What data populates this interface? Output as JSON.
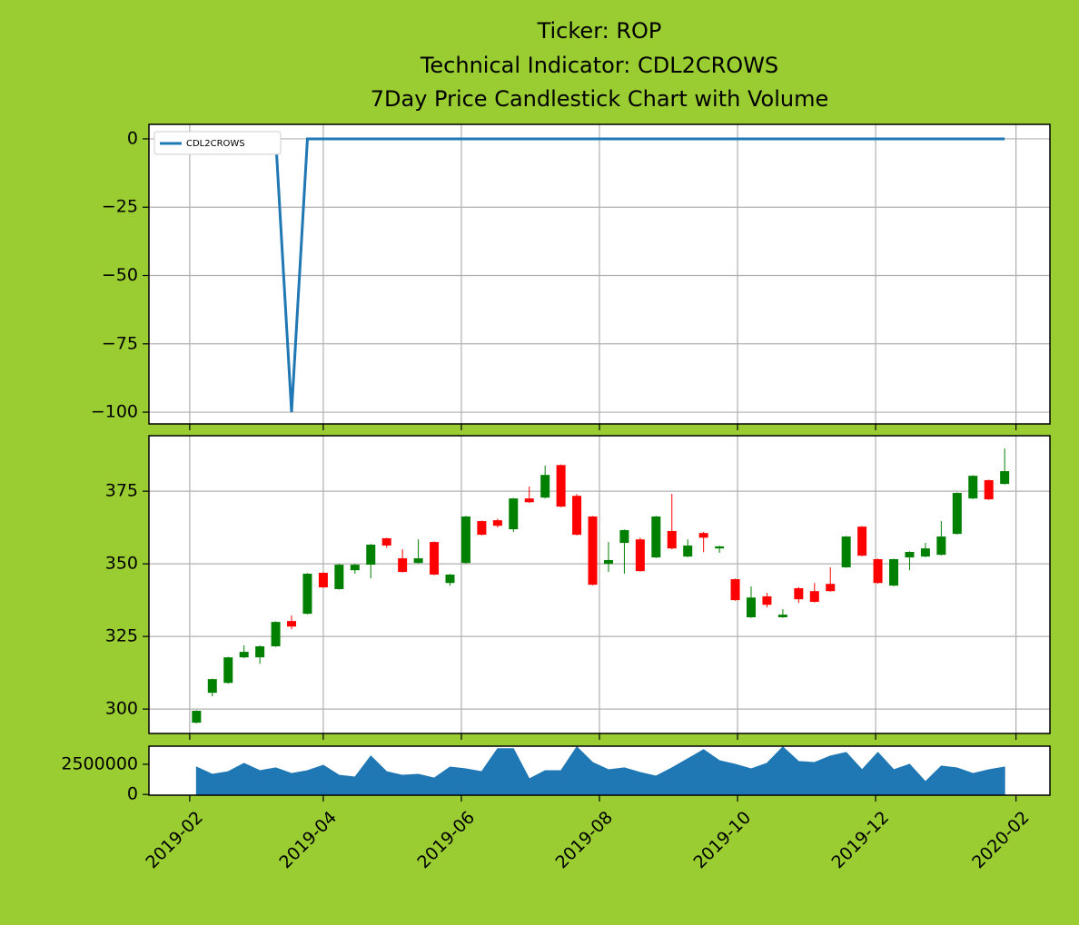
{
  "chart_data": [
    {
      "type": "line",
      "title": [
        "Ticker: ROP",
        "Technical Indicator: CDL2CROWS",
        "7Day Price Candlestick Chart with Volume"
      ],
      "x": [
        "2019-02-04",
        "2019-02-11",
        "2019-02-18",
        "2019-02-25",
        "2019-03-04",
        "2019-03-11",
        "2019-03-18",
        "2019-03-25",
        "2019-04-01",
        "2019-04-08",
        "2019-04-15",
        "2019-04-22",
        "2019-04-29",
        "2019-05-06",
        "2019-05-13",
        "2019-05-20",
        "2019-05-27",
        "2019-06-03",
        "2019-06-10",
        "2019-06-17",
        "2019-06-24",
        "2019-07-01",
        "2019-07-08",
        "2019-07-15",
        "2019-07-22",
        "2019-07-29",
        "2019-08-05",
        "2019-08-12",
        "2019-08-19",
        "2019-08-26",
        "2019-09-02",
        "2019-09-09",
        "2019-09-16",
        "2019-09-23",
        "2019-09-30",
        "2019-10-07",
        "2019-10-14",
        "2019-10-21",
        "2019-10-28",
        "2019-11-04",
        "2019-11-11",
        "2019-11-18",
        "2019-11-25",
        "2019-12-02",
        "2019-12-09",
        "2019-12-16",
        "2019-12-23",
        "2019-12-30",
        "2020-01-06",
        "2020-01-13",
        "2020-01-20",
        "2020-01-27"
      ],
      "series": [
        {
          "name": "CDL2CROWS",
          "color": "#1f77b4",
          "values": [
            0,
            0,
            0,
            0,
            0,
            0,
            -100,
            0,
            0,
            0,
            0,
            0,
            0,
            0,
            0,
            0,
            0,
            0,
            0,
            0,
            0,
            0,
            0,
            0,
            0,
            0,
            0,
            0,
            0,
            0,
            0,
            0,
            0,
            0,
            0,
            0,
            0,
            0,
            0,
            0,
            0,
            0,
            0,
            0,
            0,
            0,
            0,
            0,
            0,
            0,
            0,
            0
          ]
        }
      ],
      "xlim": [
        "2019-01-14",
        "2020-02-16"
      ],
      "ylim": [
        -104.3,
        5.3
      ],
      "yticks": [
        {
          "value": -100,
          "label": "−100"
        },
        {
          "value": -75,
          "label": "−75"
        },
        {
          "value": -50,
          "label": "−50"
        },
        {
          "value": -25,
          "label": "−25"
        },
        0
      ],
      "grid": true,
      "legend": "upper left"
    },
    {
      "type": "candlestick",
      "x": [
        "2019-02-04",
        "2019-02-11",
        "2019-02-18",
        "2019-02-25",
        "2019-03-04",
        "2019-03-11",
        "2019-03-18",
        "2019-03-25",
        "2019-04-01",
        "2019-04-08",
        "2019-04-15",
        "2019-04-22",
        "2019-04-29",
        "2019-05-06",
        "2019-05-13",
        "2019-05-20",
        "2019-05-27",
        "2019-06-03",
        "2019-06-10",
        "2019-06-17",
        "2019-06-24",
        "2019-07-01",
        "2019-07-08",
        "2019-07-15",
        "2019-07-22",
        "2019-07-29",
        "2019-08-05",
        "2019-08-12",
        "2019-08-19",
        "2019-08-26",
        "2019-09-02",
        "2019-09-09",
        "2019-09-16",
        "2019-09-23",
        "2019-09-30",
        "2019-10-07",
        "2019-10-14",
        "2019-10-21",
        "2019-10-28",
        "2019-11-04",
        "2019-11-11",
        "2019-11-18",
        "2019-11-25",
        "2019-12-02",
        "2019-12-09",
        "2019-12-16",
        "2019-12-23",
        "2019-12-30",
        "2020-01-06",
        "2020-01-13",
        "2020-01-20",
        "2020-01-27"
      ],
      "open": [
        295.3,
        305.6,
        309,
        317.8,
        317.8,
        321.6,
        330.3,
        332.8,
        346.9,
        341.3,
        347.8,
        349.7,
        358.8,
        351.9,
        350.3,
        357.5,
        343.4,
        350.3,
        364.7,
        365,
        361.9,
        372.5,
        372.8,
        384,
        373.4,
        366.3,
        350,
        357.2,
        358.4,
        352.2,
        361.3,
        352.5,
        360.6,
        355.3,
        344.7,
        331.6,
        338.8,
        331.6,
        341.6,
        340.6,
        343.1,
        348.8,
        362.8,
        351.6,
        342.5,
        352.2,
        352.5,
        353.1,
        360.3,
        372.5,
        378.8,
        377.5
      ],
      "high": [
        299.6,
        310.5,
        318,
        321.9,
        321.9,
        330.2,
        332.2,
        346.8,
        347.1,
        350,
        350,
        356.8,
        359,
        355,
        358.4,
        357.7,
        346.5,
        366.5,
        364.9,
        365.5,
        372.7,
        376.6,
        383.8,
        384.2,
        374,
        366.5,
        357.5,
        361.8,
        359,
        366.5,
        374.1,
        358.4,
        361,
        356.2,
        344.9,
        342.2,
        340,
        334.4,
        342,
        343.4,
        348.8,
        359.6,
        363,
        351.8,
        351.8,
        354.3,
        357.2,
        364.7,
        374.6,
        380.5,
        379,
        389.7
      ],
      "low": [
        295.1,
        304.4,
        308.8,
        317.5,
        315.6,
        321.4,
        327.5,
        332.6,
        341.7,
        341.1,
        346.6,
        345,
        355.5,
        347,
        350.1,
        346.1,
        342.5,
        350.1,
        359.8,
        362.5,
        361,
        371,
        372.5,
        369.5,
        359.8,
        342.6,
        347.2,
        346.6,
        347.3,
        352,
        355,
        352.3,
        354,
        353.8,
        337.3,
        331.4,
        335,
        331.4,
        336.5,
        336.7,
        340.4,
        348.6,
        352.6,
        343.2,
        342.3,
        347.8,
        352.3,
        352.9,
        360.1,
        372.3,
        372,
        377.3
      ],
      "close": [
        299.4,
        310.3,
        317.8,
        319.7,
        321.6,
        330,
        328.4,
        346.6,
        341.9,
        349.7,
        349.7,
        356.6,
        356.3,
        347.2,
        351.9,
        346.3,
        346.3,
        366.3,
        360,
        363.1,
        372.5,
        371.2,
        380.6,
        369.7,
        360,
        342.8,
        351.3,
        361.6,
        347.5,
        366.3,
        355.3,
        356.3,
        359,
        356,
        337.5,
        338.4,
        335.9,
        332.5,
        337.8,
        336.9,
        340.6,
        359.4,
        352.8,
        343.4,
        351.6,
        354.1,
        355.3,
        359.4,
        374.4,
        380.3,
        372.2,
        381.9
      ],
      "up_color": "#008000",
      "down_color": "#ff0000",
      "xlim": [
        "2019-01-14",
        "2020-02-16"
      ],
      "ylim": [
        291.6,
        394.1
      ],
      "yticks": [
        300,
        325,
        350,
        375
      ],
      "grid": true
    },
    {
      "type": "area",
      "x": [
        "2019-02-04",
        "2019-02-11",
        "2019-02-18",
        "2019-02-25",
        "2019-03-04",
        "2019-03-11",
        "2019-03-18",
        "2019-03-25",
        "2019-04-01",
        "2019-04-08",
        "2019-04-15",
        "2019-04-22",
        "2019-04-29",
        "2019-05-06",
        "2019-05-13",
        "2019-05-20",
        "2019-05-27",
        "2019-06-03",
        "2019-06-10",
        "2019-06-17",
        "2019-06-24",
        "2019-07-01",
        "2019-07-08",
        "2019-07-15",
        "2019-07-22",
        "2019-07-29",
        "2019-08-05",
        "2019-08-12",
        "2019-08-19",
        "2019-08-26",
        "2019-09-02",
        "2019-09-09",
        "2019-09-16",
        "2019-09-23",
        "2019-09-30",
        "2019-10-07",
        "2019-10-14",
        "2019-10-21",
        "2019-10-28",
        "2019-11-04",
        "2019-11-11",
        "2019-11-18",
        "2019-11-25",
        "2019-12-02",
        "2019-12-09",
        "2019-12-16",
        "2019-12-23",
        "2019-12-30",
        "2020-01-06",
        "2020-01-13",
        "2020-01-20",
        "2020-01-27"
      ],
      "values": [
        2270000,
        1670000,
        1890000,
        2580000,
        1970000,
        2200000,
        1740000,
        1970000,
        2420000,
        1590000,
        1440000,
        3180000,
        1890000,
        1590000,
        1670000,
        1360000,
        2270000,
        2120000,
        1890000,
        3790000,
        3790000,
        1290000,
        1970000,
        1970000,
        3940000,
        2650000,
        2050000,
        2200000,
        1820000,
        1520000,
        2200000,
        2950000,
        3710000,
        2800000,
        2500000,
        2120000,
        2580000,
        3940000,
        2730000,
        2650000,
        3180000,
        3480000,
        2050000,
        3480000,
        2050000,
        2500000,
        1060000,
        2350000,
        2200000,
        1740000,
        2050000,
        2270000
      ],
      "color": "#1f77b4",
      "xlim": [
        "2019-01-14",
        "2020-02-16"
      ],
      "ylim": [
        -60000,
        4000000
      ],
      "yticks": [
        0,
        2500000
      ],
      "xticks": [
        {
          "value": "2019-02-01",
          "label": "2019-02"
        },
        {
          "value": "2019-04-01",
          "label": "2019-04"
        },
        {
          "value": "2019-06-01",
          "label": "2019-06"
        },
        {
          "value": "2019-08-01",
          "label": "2019-08"
        },
        {
          "value": "2019-10-01",
          "label": "2019-10"
        },
        {
          "value": "2019-12-01",
          "label": "2019-12"
        },
        {
          "value": "2020-02-01",
          "label": "2020-02"
        }
      ],
      "grid": false
    }
  ]
}
